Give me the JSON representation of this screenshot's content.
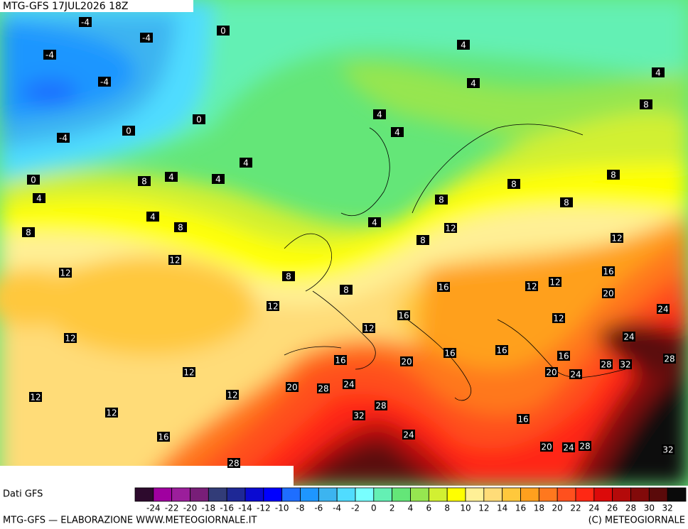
{
  "header": {
    "title": "MTG-GFS 17JUL2026 18Z"
  },
  "contour_labels": [
    -4,
    -4,
    0,
    -4,
    -4,
    0,
    0,
    -4,
    4,
    4,
    4,
    8,
    4,
    4,
    4,
    4,
    4,
    8,
    0,
    4,
    4,
    8,
    8,
    4,
    8,
    8,
    8,
    8,
    12,
    8,
    12,
    12,
    12,
    8,
    8,
    16,
    16,
    12,
    12,
    20,
    24,
    12,
    16,
    12,
    12,
    12,
    24,
    16,
    16,
    16,
    16,
    20,
    28,
    32,
    28,
    20,
    24,
    12,
    20,
    28,
    24,
    12,
    12,
    28,
    32,
    12,
    24,
    16,
    16,
    20,
    24,
    28,
    32,
    28
  ],
  "colorbar": {
    "ticks": [
      -24,
      -22,
      -20,
      -18,
      -16,
      -14,
      -12,
      -10,
      -8,
      -6,
      -4,
      -2,
      0,
      2,
      4,
      6,
      8,
      10,
      12,
      14,
      16,
      18,
      20,
      22,
      24,
      26,
      28,
      30,
      32
    ],
    "colors": [
      "#2d0a2d",
      "#a000a0",
      "#9b1e9b",
      "#781e78",
      "#323c78",
      "#1e2896",
      "#0a0ad2",
      "#0000ff",
      "#1e6eff",
      "#1e96ff",
      "#3cb4f0",
      "#50dcff",
      "#78ffff",
      "#64f0b4",
      "#64e678",
      "#96e650",
      "#d2f032",
      "#ffff00",
      "#fff096",
      "#ffdc78",
      "#ffc83c",
      "#ffa01e",
      "#ff781e",
      "#ff501e",
      "#ff2814",
      "#dc0a0a",
      "#b40a0a",
      "#820a0a",
      "#5a0a0a",
      "#0a0a0a"
    ]
  },
  "footer": {
    "source": "Dati GFS",
    "credit": "MTG-GFS — ELABORAZIONE WWW.METEOGIORNALE.IT",
    "copyright": "(C) METEOGIORNALE"
  }
}
